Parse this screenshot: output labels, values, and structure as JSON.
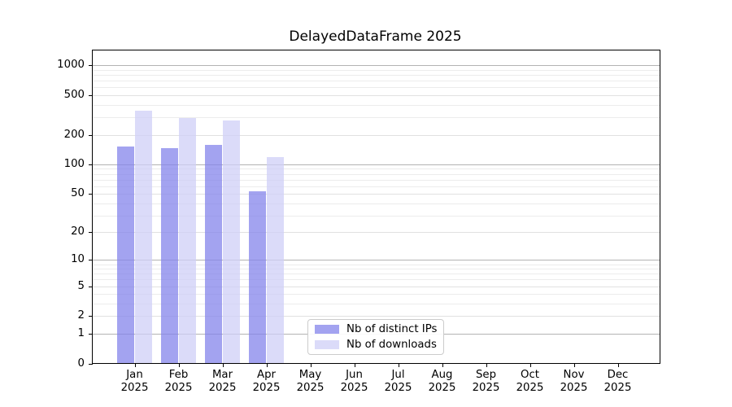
{
  "title": "DelayedDataFrame 2025",
  "chart_data": {
    "type": "bar",
    "title": "DelayedDataFrame 2025",
    "categories": [
      "Jan 2025",
      "Feb 2025",
      "Mar 2025",
      "Apr 2025",
      "May 2025",
      "Jun 2025",
      "Jul 2025",
      "Aug 2025",
      "Sep 2025",
      "Oct 2025",
      "Nov 2025",
      "Dec 2025"
    ],
    "series": [
      {
        "name": "Nb of distinct IPs",
        "color": "#a3a3f0",
        "values": [
          150,
          145,
          157,
          53,
          null,
          null,
          null,
          null,
          null,
          null,
          null,
          null
        ]
      },
      {
        "name": "Nb of downloads",
        "color": "#dbdbf9",
        "values": [
          345,
          295,
          277,
          117,
          null,
          null,
          null,
          null,
          null,
          null,
          null,
          null
        ]
      }
    ],
    "yscale": "log1p",
    "yticks": [
      0,
      1,
      2,
      5,
      10,
      20,
      50,
      100,
      200,
      500,
      1000
    ],
    "ylim": [
      0,
      1400
    ],
    "grid": true,
    "legend_position": "lower center"
  },
  "colors": {
    "grid_major": "#b3b3b3",
    "grid_mid": "#e1e1e1",
    "grid_minor": "#ececec",
    "spine": "#000000",
    "text": "#000000",
    "background": "#ffffff",
    "legend_border": "#cccccc"
  }
}
